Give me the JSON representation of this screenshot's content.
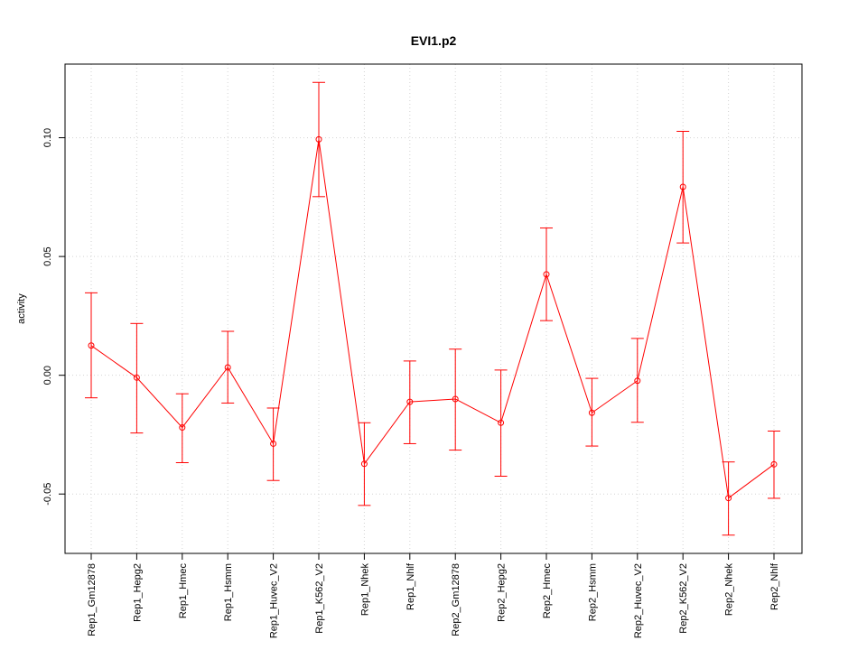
{
  "chart_data": {
    "type": "line",
    "title": "EVI1.p2",
    "xlabel": "",
    "ylabel": "activity",
    "ylim": [
      -0.075,
      0.131
    ],
    "y_ticks": [
      -0.05,
      0.0,
      0.05,
      0.1
    ],
    "y_tick_labels": [
      "-0.05",
      "0.00",
      "0.05",
      "0.10"
    ],
    "grid": true,
    "color": "#ff0000",
    "categories": [
      "Rep1_Gm12878",
      "Rep1_Hepg2",
      "Rep1_Hmec",
      "Rep1_Hsmm",
      "Rep1_Huvec_V2",
      "Rep1_K562_V2",
      "Rep1_Nhek",
      "Rep1_Nhlf",
      "Rep2_Gm12878",
      "Rep2_Hepg2",
      "Rep2_Hmec",
      "Rep2_Hsmm",
      "Rep2_Huvec_V2",
      "Rep2_K562_V2",
      "Rep2_Nhek",
      "Rep2_Nhlf"
    ],
    "values": [
      0.0125,
      -0.001,
      -0.022,
      0.0033,
      -0.0288,
      0.0993,
      -0.0373,
      -0.0112,
      -0.01,
      -0.02,
      0.0425,
      -0.0158,
      -0.0023,
      0.0793,
      -0.0517,
      -0.0375
    ],
    "error_low": [
      -0.0095,
      -0.0243,
      -0.0368,
      -0.0117,
      -0.0443,
      0.0752,
      -0.0548,
      -0.0288,
      -0.0315,
      -0.0425,
      0.023,
      -0.0298,
      -0.0198,
      0.0557,
      -0.0673,
      -0.0518
    ],
    "error_high": [
      0.0347,
      0.0218,
      -0.0078,
      0.0185,
      -0.0138,
      0.1233,
      -0.02,
      0.006,
      0.011,
      0.0022,
      0.062,
      -0.0013,
      0.0155,
      0.1027,
      -0.0365,
      -0.0235
    ]
  }
}
